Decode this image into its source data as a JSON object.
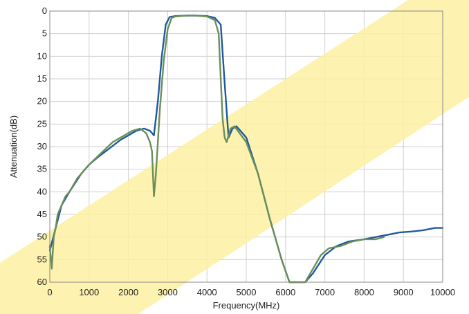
{
  "chart_data": {
    "type": "line",
    "xlabel": "Frequency(MHz)",
    "ylabel": "Attenuation(dB)",
    "xlim": [
      0,
      10000
    ],
    "ylim": [
      0,
      60
    ],
    "y_inverted": true,
    "grid": true,
    "x_ticks": [
      "0",
      "1000",
      "2000",
      "3000",
      "4000",
      "5000",
      "6000",
      "7000",
      "8000",
      "9000",
      "10000"
    ],
    "y_ticks": [
      "0",
      "5",
      "10",
      "15",
      "20",
      "25",
      "30",
      "35",
      "40",
      "45",
      "50",
      "55",
      "60"
    ],
    "series": [
      {
        "color": "#1f5a9e",
        "x": [
          0,
          300,
          500,
          800,
          1000,
          1200,
          1500,
          1800,
          2000,
          2200,
          2400,
          2550,
          2650,
          2750,
          2850,
          2950,
          3050,
          3200,
          3500,
          3700,
          4000,
          4200,
          4350,
          4450,
          4550,
          4650,
          4750,
          5000,
          5300,
          5600,
          5900,
          6100,
          6300,
          6500,
          6700,
          7000,
          7300,
          7600,
          8000,
          8300,
          8600,
          8900,
          9200,
          9500,
          9800,
          10000
        ],
        "y": [
          53,
          43,
          40,
          36,
          34,
          32.5,
          30.5,
          28.5,
          27.5,
          26.5,
          26,
          26.5,
          27.5,
          20,
          10,
          3,
          1.3,
          1.1,
          1.0,
          1.0,
          1.1,
          1.5,
          3,
          16,
          28,
          26,
          25.5,
          28,
          36,
          46,
          55,
          60,
          60,
          60,
          58,
          54,
          52,
          51,
          50.5,
          50,
          49.5,
          49,
          48.8,
          48.5,
          48,
          48
        ]
      },
      {
        "color": "#6b8e5a",
        "x": [
          0,
          50,
          100,
          150,
          200,
          300,
          400,
          500,
          700,
          1000,
          1300,
          1600,
          1900,
          2100,
          2300,
          2450,
          2550,
          2600,
          2650,
          2700,
          2800,
          2900,
          3000,
          3100,
          3200,
          3500,
          3700,
          4000,
          4200,
          4300,
          4350,
          4400,
          4450,
          4500,
          4600,
          4700,
          5000,
          5300,
          5600,
          5900,
          6100,
          6500,
          6700,
          6900,
          7100,
          7400,
          7700,
          8000,
          8300,
          8500
        ],
        "y": [
          52,
          57,
          50,
          48,
          45,
          43,
          41,
          40,
          37,
          34,
          31.5,
          29,
          27.5,
          26.5,
          26,
          27,
          29,
          31,
          41,
          36,
          22,
          11,
          4,
          1.5,
          1.2,
          1.0,
          1.0,
          1.2,
          2,
          5,
          15,
          24,
          28,
          29,
          26,
          25.5,
          29,
          36,
          46,
          55,
          60,
          60,
          57,
          54,
          52.5,
          52,
          51,
          50.5,
          50.5,
          50
        ]
      }
    ]
  }
}
